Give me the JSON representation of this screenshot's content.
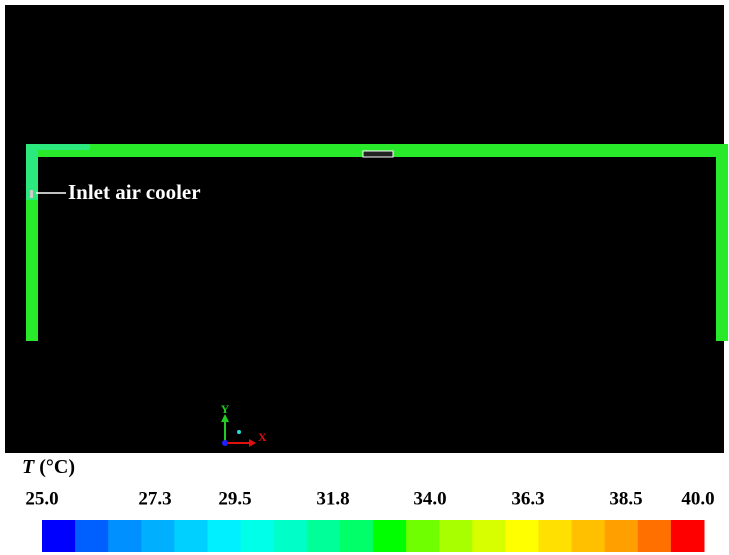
{
  "annotation": "Inlet air cooler",
  "axes": {
    "x": "X",
    "y": "Y"
  },
  "legend": {
    "symbol": "T",
    "unit": "(°C)",
    "tick_labels": [
      "25.0",
      "27.3",
      "29.5",
      "31.8",
      "34.0",
      "36.3",
      "38.5",
      "40.0"
    ],
    "colors": [
      "#0000ff",
      "#0060ff",
      "#0090ff",
      "#00b0ff",
      "#00d0ff",
      "#00f0ff",
      "#00ffe8",
      "#00ffc8",
      "#00ff98",
      "#00ff68",
      "#00ff00",
      "#70ff00",
      "#a8ff00",
      "#d8ff00",
      "#ffff00",
      "#ffe000",
      "#ffc000",
      "#ffa000",
      "#ff7000",
      "#ff0000"
    ]
  }
}
